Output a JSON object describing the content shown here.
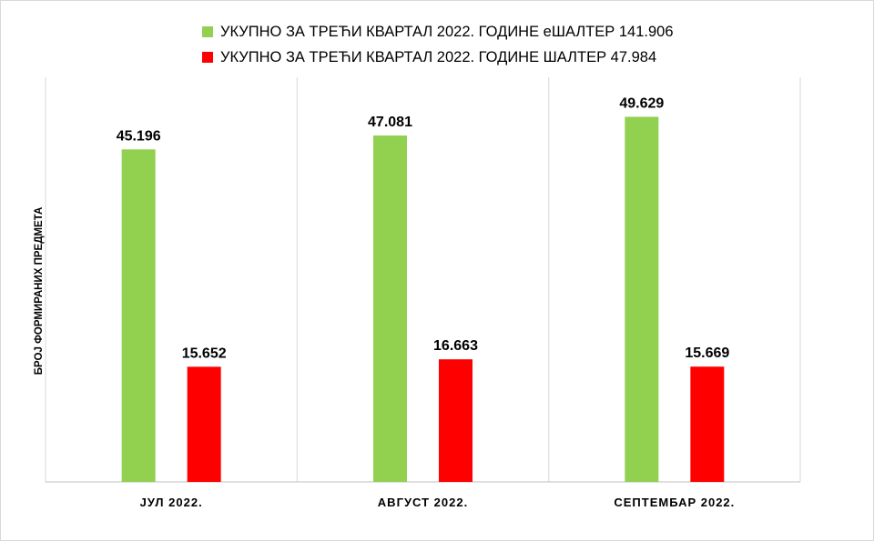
{
  "chart_data": {
    "type": "bar",
    "title": "",
    "xlabel": "",
    "ylabel": "БРОЈ ФОРМИРАНИХ ПРЕДМЕТА",
    "categories": [
      "ЈУЛ 2022.",
      "АВГУСТ 2022.",
      "СЕПТЕМБАР 2022."
    ],
    "series": [
      {
        "name": "УКУПНО ЗА ТРЕЋИ КВАРТАЛ 2022. ГОДИНЕ еШАЛТЕР 141.906",
        "color": "#92d050",
        "values": [
          45196,
          47081,
          49629
        ],
        "labels": [
          "45.196",
          "47.081",
          "49.629"
        ]
      },
      {
        "name": "УКУПНО ЗА ТРЕЋИ КВАРТАЛ 2022. ГОДИНЕ ШАЛТЕР 47.984",
        "color": "#ff0000",
        "values": [
          15652,
          16663,
          15669
        ],
        "labels": [
          "15.652",
          "16.663",
          "15.669"
        ]
      }
    ],
    "ylim": [
      0,
      55000
    ],
    "grid": "vertical category separators",
    "legend": "top"
  }
}
